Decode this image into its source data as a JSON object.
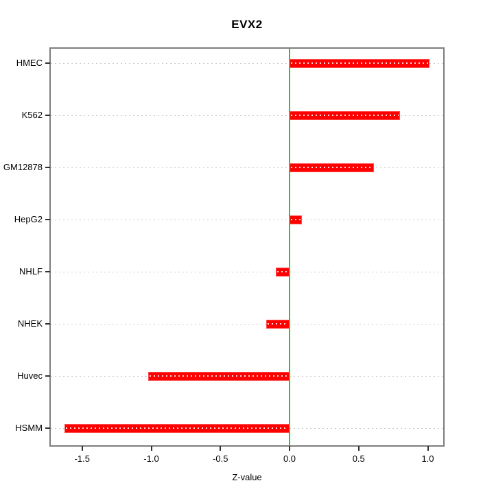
{
  "chart_data": {
    "type": "bar",
    "orientation": "horizontal",
    "title": "EVX2",
    "xlabel": "Z-value",
    "ylabel": "",
    "categories": [
      "HMEC",
      "K562",
      "GM12878",
      "HepG2",
      "NHLF",
      "NHEK",
      "Huvec",
      "HSMM"
    ],
    "values": [
      1.01,
      0.8,
      0.61,
      0.09,
      -0.1,
      -0.17,
      -1.02,
      -1.63
    ],
    "x_ticks": [
      -1.5,
      -1.0,
      -0.5,
      0.0,
      0.5,
      1.0
    ],
    "x_tick_labels": [
      "-1.5",
      "-1.0",
      "-0.5",
      "0.0",
      "0.5",
      "1.0"
    ],
    "xlim": [
      -1.74,
      1.12
    ],
    "grid": "dotted-horizontal",
    "legend": "none",
    "colors": {
      "bar": "#ff0000",
      "bar_edge": "#ff4d4d",
      "zero_line": "#00e600",
      "grid_line": "#c9c9c9",
      "box": "#7d7d7d",
      "tick": "#303030",
      "text": "#000000",
      "background": "#ffffff"
    }
  }
}
